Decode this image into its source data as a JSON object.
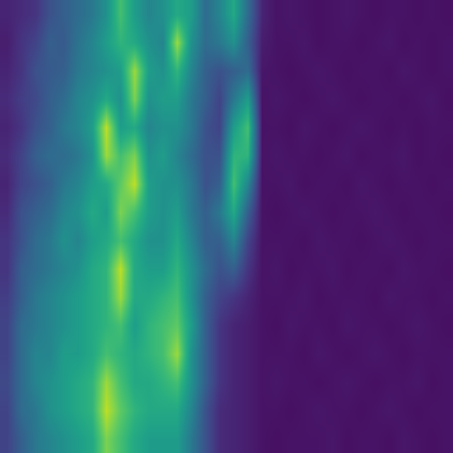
{
  "chart_data": {
    "type": "heatmap",
    "color": "Viridis",
    "zlim": [
      0,
      1
    ],
    "tick_labels": false,
    "cells": [
      [
        0.1,
        0.12,
        0.15,
        0.25,
        0.3,
        0.35,
        0.4,
        0.5,
        0.7,
        0.55,
        0.45,
        0.5,
        0.6,
        0.55,
        0.35,
        0.45,
        0.6,
        0.35,
        0.1,
        0.05,
        0.06,
        0.05,
        0.04,
        0.05,
        0.06,
        0.05,
        0.04,
        0.05,
        0.05,
        0.04,
        0.05,
        0.04
      ],
      [
        0.08,
        0.15,
        0.2,
        0.3,
        0.28,
        0.38,
        0.45,
        0.55,
        0.65,
        0.6,
        0.5,
        0.45,
        0.85,
        0.5,
        0.35,
        0.4,
        0.5,
        0.3,
        0.08,
        0.05,
        0.05,
        0.06,
        0.04,
        0.05,
        0.05,
        0.04,
        0.05,
        0.06,
        0.04,
        0.05,
        0.04,
        0.05
      ],
      [
        0.1,
        0.15,
        0.25,
        0.28,
        0.3,
        0.4,
        0.45,
        0.5,
        0.55,
        0.85,
        0.55,
        0.5,
        0.65,
        0.45,
        0.3,
        0.25,
        0.3,
        0.35,
        0.06,
        0.05,
        0.04,
        0.05,
        0.06,
        0.05,
        0.04,
        0.05,
        0.05,
        0.04,
        0.06,
        0.05,
        0.04,
        0.05
      ],
      [
        0.12,
        0.18,
        0.22,
        0.3,
        0.35,
        0.45,
        0.5,
        0.6,
        0.5,
        0.8,
        0.5,
        0.55,
        0.55,
        0.4,
        0.3,
        0.2,
        0.4,
        0.55,
        0.05,
        0.06,
        0.05,
        0.04,
        0.05,
        0.06,
        0.05,
        0.04,
        0.05,
        0.05,
        0.04,
        0.05,
        0.06,
        0.04
      ],
      [
        0.1,
        0.15,
        0.25,
        0.3,
        0.4,
        0.45,
        0.55,
        0.9,
        0.55,
        0.6,
        0.45,
        0.5,
        0.5,
        0.4,
        0.25,
        0.2,
        0.55,
        0.7,
        0.05,
        0.05,
        0.04,
        0.06,
        0.05,
        0.04,
        0.05,
        0.06,
        0.05,
        0.04,
        0.05,
        0.04,
        0.05,
        0.05
      ],
      [
        0.12,
        0.2,
        0.3,
        0.35,
        0.35,
        0.4,
        0.5,
        0.85,
        0.7,
        0.8,
        0.5,
        0.55,
        0.45,
        0.35,
        0.25,
        0.25,
        0.65,
        0.65,
        0.05,
        0.06,
        0.05,
        0.05,
        0.04,
        0.05,
        0.06,
        0.04,
        0.05,
        0.05,
        0.06,
        0.04,
        0.05,
        0.04
      ],
      [
        0.1,
        0.2,
        0.25,
        0.3,
        0.4,
        0.45,
        0.55,
        0.6,
        0.75,
        0.9,
        0.55,
        0.5,
        0.5,
        0.4,
        0.25,
        0.3,
        0.7,
        0.45,
        0.05,
        0.05,
        0.06,
        0.04,
        0.05,
        0.05,
        0.04,
        0.06,
        0.05,
        0.04,
        0.05,
        0.05,
        0.04,
        0.05
      ],
      [
        0.12,
        0.25,
        0.3,
        0.35,
        0.45,
        0.5,
        0.6,
        0.55,
        0.8,
        0.7,
        0.55,
        0.5,
        0.55,
        0.4,
        0.3,
        0.4,
        0.6,
        0.3,
        0.05,
        0.04,
        0.05,
        0.06,
        0.05,
        0.04,
        0.05,
        0.05,
        0.06,
        0.05,
        0.04,
        0.05,
        0.05,
        0.04
      ],
      [
        0.15,
        0.25,
        0.35,
        0.4,
        0.5,
        0.45,
        0.55,
        0.6,
        0.7,
        0.6,
        0.5,
        0.5,
        0.6,
        0.45,
        0.3,
        0.3,
        0.45,
        0.2,
        0.05,
        0.05,
        0.05,
        0.04,
        0.06,
        0.05,
        0.05,
        0.04,
        0.05,
        0.06,
        0.05,
        0.04,
        0.05,
        0.05
      ],
      [
        0.15,
        0.3,
        0.35,
        0.4,
        0.45,
        0.5,
        0.6,
        0.65,
        0.9,
        0.6,
        0.55,
        0.55,
        0.65,
        0.5,
        0.35,
        0.25,
        0.3,
        0.15,
        0.05,
        0.06,
        0.04,
        0.05,
        0.05,
        0.06,
        0.04,
        0.05,
        0.05,
        0.04,
        0.06,
        0.05,
        0.05,
        0.04
      ],
      [
        0.18,
        0.3,
        0.4,
        0.45,
        0.5,
        0.55,
        0.6,
        0.65,
        0.85,
        0.6,
        0.6,
        0.65,
        0.7,
        0.5,
        0.3,
        0.2,
        0.15,
        0.1,
        0.05,
        0.05,
        0.05,
        0.06,
        0.04,
        0.05,
        0.05,
        0.05,
        0.04,
        0.06,
        0.05,
        0.05,
        0.04,
        0.05
      ],
      [
        0.2,
        0.35,
        0.4,
        0.45,
        0.5,
        0.55,
        0.6,
        0.65,
        0.7,
        0.55,
        0.65,
        0.7,
        0.75,
        0.55,
        0.3,
        0.15,
        0.1,
        0.08,
        0.05,
        0.04,
        0.06,
        0.05,
        0.05,
        0.04,
        0.06,
        0.05,
        0.05,
        0.04,
        0.05,
        0.06,
        0.05,
        0.04
      ],
      [
        0.2,
        0.35,
        0.45,
        0.45,
        0.55,
        0.55,
        0.6,
        0.7,
        0.65,
        0.6,
        0.65,
        0.7,
        0.85,
        0.5,
        0.3,
        0.15,
        0.1,
        0.08,
        0.05,
        0.05,
        0.05,
        0.04,
        0.06,
        0.05,
        0.04,
        0.05,
        0.06,
        0.05,
        0.04,
        0.05,
        0.05,
        0.05
      ],
      [
        0.22,
        0.35,
        0.45,
        0.5,
        0.55,
        0.6,
        0.65,
        0.85,
        0.7,
        0.6,
        0.6,
        0.65,
        0.7,
        0.5,
        0.3,
        0.15,
        0.1,
        0.08,
        0.05,
        0.06,
        0.05,
        0.05,
        0.04,
        0.05,
        0.06,
        0.05,
        0.04,
        0.05,
        0.05,
        0.06,
        0.04,
        0.05
      ],
      [
        0.2,
        0.35,
        0.4,
        0.5,
        0.55,
        0.6,
        0.65,
        0.9,
        0.75,
        0.65,
        0.6,
        0.6,
        0.6,
        0.45,
        0.25,
        0.12,
        0.1,
        0.08,
        0.05,
        0.05,
        0.04,
        0.05,
        0.06,
        0.05,
        0.05,
        0.04,
        0.05,
        0.06,
        0.05,
        0.04,
        0.05,
        0.05
      ],
      [
        0.2,
        0.3,
        0.4,
        0.45,
        0.5,
        0.55,
        0.6,
        0.8,
        0.7,
        0.6,
        0.55,
        0.55,
        0.55,
        0.4,
        0.25,
        0.12,
        0.1,
        0.08,
        0.05,
        0.04,
        0.05,
        0.05,
        0.05,
        0.06,
        0.04,
        0.05,
        0.05,
        0.04,
        0.06,
        0.05,
        0.04,
        0.05
      ]
    ]
  }
}
